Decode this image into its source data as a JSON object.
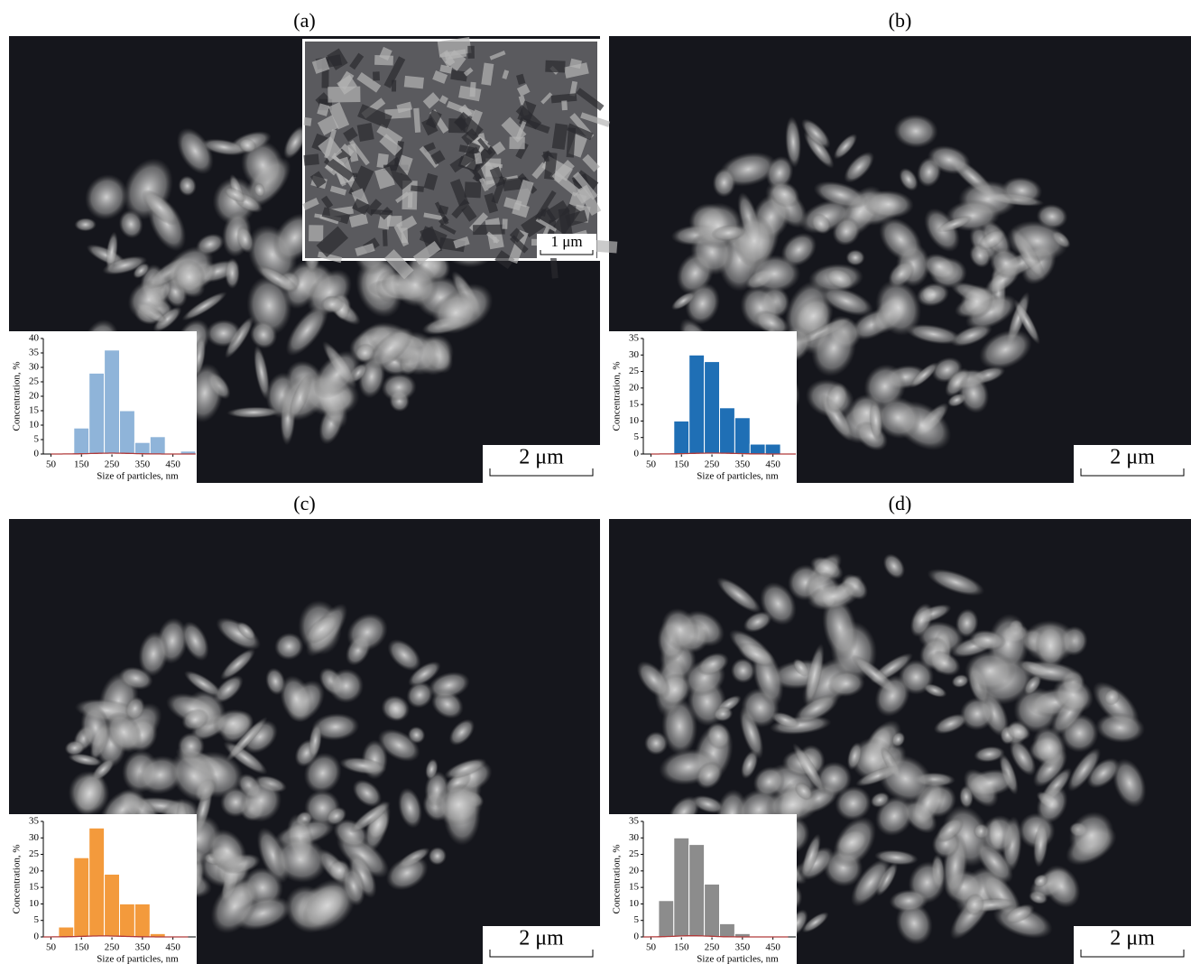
{
  "panels": [
    {
      "label": "(a)",
      "scale": "2 μm"
    },
    {
      "label": "(b)",
      "scale": "2 μm"
    },
    {
      "label": "(c)",
      "scale": "2 μm"
    },
    {
      "label": "(d)",
      "scale": "2 μm"
    }
  ],
  "inset_scale": "1 μm",
  "chart_data": [
    {
      "type": "histogram",
      "x_label": "Size of particles, nm",
      "y_label": "Concentration, %",
      "color": "#8fb4d9",
      "bins": [
        125,
        175,
        225,
        275,
        325,
        375,
        425,
        475,
        525
      ],
      "values": [
        9,
        28,
        36,
        15,
        4,
        6,
        0,
        1
      ],
      "xlim": [
        25,
        525
      ],
      "xticks": [
        50,
        150,
        250,
        350,
        450
      ],
      "ylim": [
        0,
        40
      ],
      "yticks": [
        0,
        5,
        10,
        15,
        20,
        25,
        30,
        35,
        40
      ]
    },
    {
      "type": "histogram",
      "x_label": "Size of particles, nm",
      "y_label": "Concentration, %",
      "color": "#1f6fb5",
      "bins": [
        125,
        175,
        225,
        275,
        325,
        375,
        425,
        475
      ],
      "values": [
        10,
        30,
        28,
        14,
        11,
        3,
        3
      ],
      "xlim": [
        25,
        525
      ],
      "xticks": [
        50,
        150,
        250,
        350,
        450
      ],
      "ylim": [
        0,
        35
      ],
      "yticks": [
        0,
        5,
        10,
        15,
        20,
        25,
        30,
        35
      ]
    },
    {
      "type": "histogram",
      "x_label": "Size of particles, nm",
      "y_label": "Concentration, %",
      "color": "#f39a3c",
      "bins": [
        75,
        125,
        175,
        225,
        275,
        325,
        375,
        425
      ],
      "values": [
        3,
        24,
        33,
        19,
        10,
        10,
        1
      ],
      "xlim": [
        25,
        525
      ],
      "xticks": [
        50,
        150,
        250,
        350,
        450
      ],
      "ylim": [
        0,
        35
      ],
      "yticks": [
        0,
        5,
        10,
        15,
        20,
        25,
        30,
        35
      ]
    },
    {
      "type": "histogram",
      "x_label": "Size of particles, nm",
      "y_label": "Concentration, %",
      "color": "#8c8c8c",
      "bins": [
        75,
        125,
        175,
        225,
        275,
        325,
        375,
        425
      ],
      "values": [
        11,
        30,
        28,
        16,
        4,
        1,
        0
      ],
      "xlim": [
        25,
        525
      ],
      "xticks": [
        50,
        150,
        250,
        350,
        450
      ],
      "ylim": [
        0,
        35
      ],
      "yticks": [
        0,
        5,
        10,
        15,
        20,
        25,
        30,
        35
      ]
    }
  ]
}
